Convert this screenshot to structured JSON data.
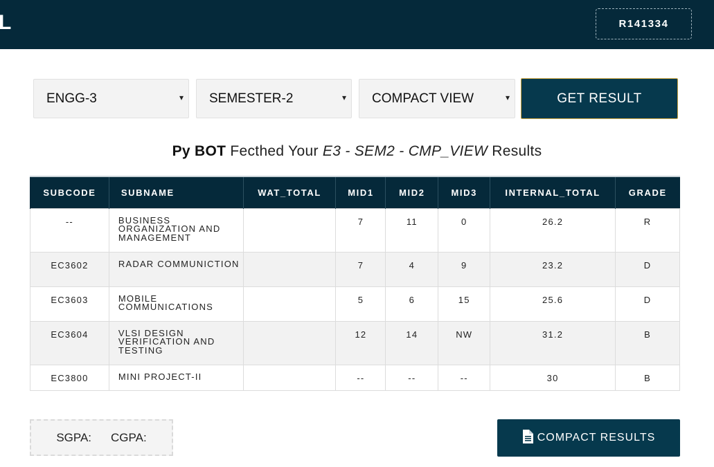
{
  "header": {
    "brand": "L",
    "user_id": "R141334"
  },
  "filters": {
    "branch": "ENGG-3",
    "semester": "SEMESTER-2",
    "view": "COMPACT VIEW",
    "caret": "▾",
    "submit_label": "GET RESULT"
  },
  "heading": {
    "bot": "Py BOT",
    "text1": " Fecthed Your ",
    "tag": "E3 - SEM2 - CMP_VIEW",
    "text2": "  Results"
  },
  "table": {
    "columns": [
      "SUBCODE",
      "SUBNAME",
      "WAT_TOTAL",
      "MID1",
      "MID2",
      "MID3",
      "INTERNAL_TOTAL",
      "GRADE"
    ],
    "rows": [
      [
        "--",
        "BUSINESS ORGANIZATION AND MANAGEMENT",
        "",
        "7",
        "11",
        "0",
        "26.2",
        "R"
      ],
      [
        "EC3602",
        "RADAR COMMUNICTION",
        "",
        "7",
        "4",
        "9",
        "23.2",
        "D"
      ],
      [
        "EC3603",
        "MOBILE COMMUNICATIONS",
        "",
        "5",
        "6",
        "15",
        "25.6",
        "D"
      ],
      [
        "EC3604",
        "VLSI DESIGN VERIFICATION AND TESTING",
        "",
        "12",
        "14",
        "NW",
        "31.2",
        "B"
      ],
      [
        "EC3800",
        "MINI PROJECT-II",
        "",
        "--",
        "--",
        "--",
        "30",
        "B"
      ]
    ]
  },
  "summary": {
    "sgpa_label": "SGPA:",
    "cgpa_label": "CGPA:"
  },
  "compact_button": {
    "icon": "document-icon",
    "label": "COMPACT RESULTS"
  }
}
